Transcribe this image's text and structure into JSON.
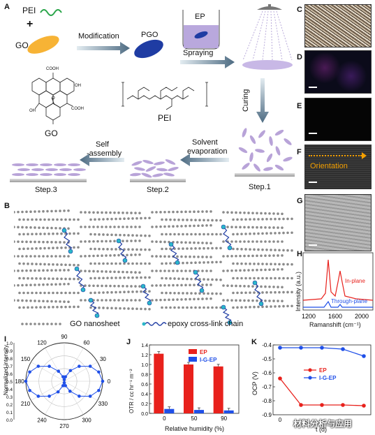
{
  "panelA": {
    "label": "A",
    "pei": "PEI",
    "plus": "+",
    "go": "GO",
    "modification": "Modification",
    "pgo": "PGO",
    "ep": "EP",
    "spraying": "Spraying",
    "curing": "Curing",
    "solvent": "Solvent",
    "evaporation": "evaporation",
    "self": "Self",
    "assembly": "-assembly",
    "go_struct": "GO",
    "pei_struct": "PEI",
    "cooh1": "COOH",
    "cooh2": "COOH",
    "oh1": "OH",
    "oh2": "OH",
    "o": "O",
    "step1": "Step.1",
    "step2": "Step.2",
    "step3": "Step.3"
  },
  "panelB": {
    "label": "B",
    "legend_go": "GO nanosheet",
    "legend_epoxy": "epoxy cross-link chain"
  },
  "sidePanels": {
    "c": "C",
    "d": "D",
    "e": "E",
    "f": "F",
    "g": "G",
    "orientation": "Orientation"
  },
  "panelH": {
    "label": "H",
    "ylabel": "Intensity (a.u.)",
    "xlabel": "Ramanshift (cm⁻¹)",
    "inplane": "In-plane",
    "throughplane": "Through-plane",
    "ticks": [
      "1200",
      "1600",
      "2000"
    ]
  },
  "chart_data": [
    {
      "type": "scatter",
      "label": "I",
      "ylabel": "Normalized intensity",
      "angles": [
        "0",
        "30",
        "60",
        "90",
        "120",
        "150",
        "180",
        "210",
        "240",
        "270",
        "300",
        "330"
      ],
      "radial_ticks": [
        "0.0",
        "0.1",
        "0.2",
        "0.3",
        "0.4",
        "0.5",
        "0.6",
        "0.7",
        "0.8",
        "0.9",
        "1.0"
      ],
      "points_deg": [
        0,
        15,
        30,
        45,
        60,
        75,
        90,
        105,
        120,
        135,
        150,
        165,
        180,
        195,
        210,
        225,
        240,
        255,
        270,
        285,
        300,
        315,
        330,
        345
      ],
      "points_r": [
        1.0,
        0.93,
        0.78,
        0.55,
        0.32,
        0.12,
        0.04,
        0.12,
        0.3,
        0.55,
        0.78,
        0.93,
        1.0,
        0.93,
        0.78,
        0.55,
        0.32,
        0.12,
        0.04,
        0.12,
        0.3,
        0.55,
        0.78,
        0.93
      ]
    },
    {
      "type": "bar",
      "label": "J",
      "ylabel": "OTR / cc hr⁻¹ m⁻²",
      "xlabel": "Relative humidity (%)",
      "categories": [
        "0",
        "50",
        "90"
      ],
      "ylim": [
        0,
        1.4
      ],
      "yticks": [
        "0.0",
        "0.2",
        "0.4",
        "0.6",
        "0.8",
        "1.0",
        "1.2",
        "1.4"
      ],
      "series": [
        {
          "name": "EP",
          "color": "#e8211c",
          "values": [
            1.22,
            1.0,
            0.96
          ]
        },
        {
          "name": "I-G-EP",
          "color": "#1f4fe8",
          "values": [
            0.09,
            0.07,
            0.06
          ]
        }
      ]
    },
    {
      "type": "line",
      "label": "K",
      "ylabel": "OCP (V)",
      "xlabel": "t (d)",
      "x": [
        0,
        1,
        2,
        3,
        4
      ],
      "ylim": [
        -0.9,
        -0.4
      ],
      "yticks": [
        "-0.4",
        "-0.5",
        "-0.6",
        "-0.7",
        "-0.8",
        "-0.9"
      ],
      "xticks": [
        "0"
      ],
      "series": [
        {
          "name": "EP",
          "color": "#e8211c",
          "values": [
            -0.64,
            -0.83,
            -0.83,
            -0.83,
            -0.835
          ]
        },
        {
          "name": "I-G-EP",
          "color": "#1f4fe8",
          "values": [
            -0.42,
            -0.42,
            -0.42,
            -0.43,
            -0.48
          ]
        }
      ]
    }
  ],
  "watermark": "材料分析与应用"
}
